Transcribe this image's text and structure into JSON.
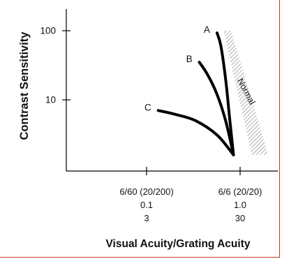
{
  "chart_data": {
    "type": "line",
    "ylabel": "Contrast Sensitivity",
    "xlabel": "Visual Acuity/Grating Acuity",
    "y_ticks": [
      {
        "value": 100,
        "label": "100"
      },
      {
        "value": 10,
        "label": "10"
      }
    ],
    "x_ticks": [
      {
        "value": 3,
        "lines": [
          "6/60 (20/200)",
          "0.1",
          "3"
        ]
      },
      {
        "value": 30,
        "lines": [
          "6/6 (20/20)",
          "1.0",
          "30"
        ]
      }
    ],
    "y_scale": "log",
    "x_scale": "log",
    "series": [
      {
        "name": "A",
        "points": [
          [
            17,
            93
          ],
          [
            18.7,
            60
          ],
          [
            21,
            20
          ],
          [
            23,
            6
          ],
          [
            25.5,
            1.6
          ]
        ]
      },
      {
        "name": "B",
        "points": [
          [
            11,
            35
          ],
          [
            13.5,
            23
          ],
          [
            17,
            12
          ],
          [
            21,
            5
          ],
          [
            25.5,
            1.6
          ]
        ]
      },
      {
        "name": "C",
        "points": [
          [
            4,
            7
          ],
          [
            6,
            6.2
          ],
          [
            10,
            5
          ],
          [
            17,
            3.1
          ],
          [
            25.5,
            1.6
          ]
        ]
      }
    ],
    "normal_region": {
      "label": "Normal",
      "polygon": [
        [
          20,
          100
        ],
        [
          24,
          100
        ],
        [
          60,
          1.6
        ],
        [
          40,
          1.6
        ]
      ]
    },
    "colors": {
      "curves": "#000000",
      "hatch": "#777777"
    }
  }
}
